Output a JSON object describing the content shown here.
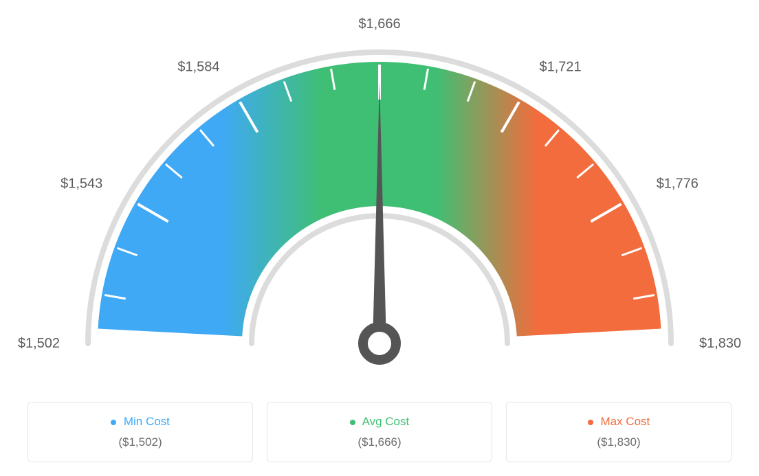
{
  "gauge": {
    "type": "gauge",
    "min_value": 1502,
    "max_value": 1830,
    "avg_value": 1666,
    "needle_value": 1666,
    "tick_labels": [
      "$1,502",
      "$1,543",
      "$1,584",
      "$1,666",
      "$1,721",
      "$1,776",
      "$1,830"
    ],
    "tick_fill": "#5b5b5b",
    "tick_fontsize": 20,
    "outer_radius": 410,
    "inner_radius": 200,
    "colors": {
      "min": "#3fa9f5",
      "avg": "#3fbf74",
      "max": "#f26c3d",
      "arc_border": "#dcdcdc",
      "needle": "#555555",
      "tick_mark": "#ffffff",
      "background": "#ffffff"
    },
    "arc_border_width": 8
  },
  "legend": {
    "min": {
      "label": "Min Cost",
      "value": "($1,502)",
      "color": "#3fa9f5"
    },
    "avg": {
      "label": "Avg Cost",
      "value": "($1,666)",
      "color": "#3fbf74"
    },
    "max": {
      "label": "Max Cost",
      "value": "($1,830)",
      "color": "#f26c3d"
    },
    "card_border": "#e5e5e5",
    "label_fontsize": 17,
    "value_fontsize": 17,
    "value_color": "#6b6b6b"
  }
}
